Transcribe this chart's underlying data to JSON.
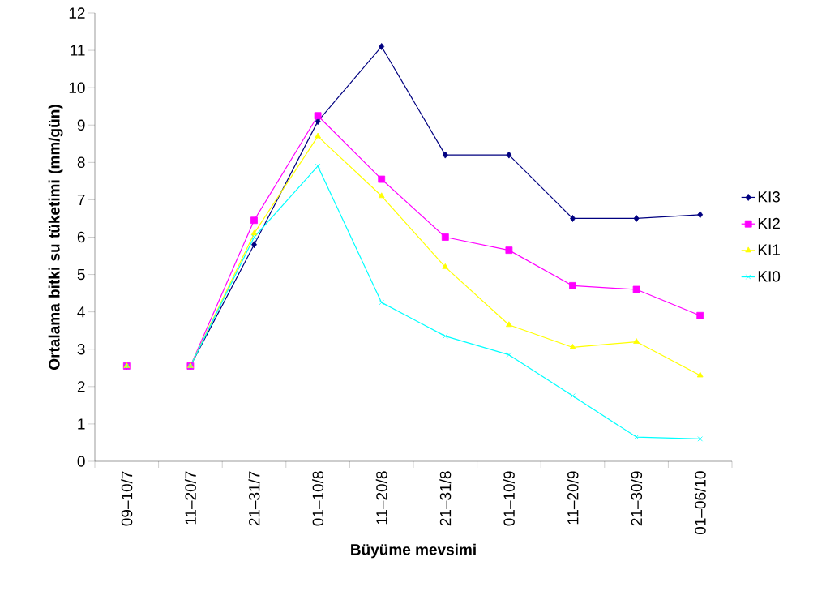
{
  "chart_data": {
    "type": "line",
    "xlabel": "Büyüme mevsimi",
    "ylabel": "Ortalama bitki su tüketimi (mm/gün)",
    "categories": [
      "09–10/7",
      "11–20/7",
      "21–31/7",
      "01–10/8",
      "11–20/8",
      "21–31/8",
      "01–10/9",
      "11–20/9",
      "21–30/9",
      "01–06/10"
    ],
    "ylim": [
      0,
      12
    ],
    "yticks": [
      0,
      1,
      2,
      3,
      4,
      5,
      6,
      7,
      8,
      9,
      10,
      11,
      12
    ],
    "grid": false,
    "legend": "right",
    "line_style": "solid",
    "series": [
      {
        "name": "KI3",
        "color": "#000080",
        "marker": "diamond",
        "values": [
          2.55,
          2.55,
          5.8,
          9.1,
          11.1,
          8.2,
          8.2,
          6.5,
          6.5,
          6.6
        ]
      },
      {
        "name": "KI2",
        "color": "#ff00ff",
        "marker": "square",
        "values": [
          2.55,
          2.55,
          6.45,
          9.25,
          7.55,
          6.0,
          5.65,
          4.7,
          4.6,
          3.9
        ]
      },
      {
        "name": "KI1",
        "color": "#ffff00",
        "marker": "triangle",
        "values": [
          2.55,
          2.55,
          6.1,
          8.7,
          7.1,
          5.2,
          3.65,
          3.05,
          3.2,
          2.3
        ]
      },
      {
        "name": "KI0",
        "color": "#00ffff",
        "marker": "cross",
        "values": [
          2.55,
          2.55,
          6.0,
          7.9,
          4.25,
          3.35,
          2.85,
          1.75,
          0.65,
          0.6
        ]
      }
    ]
  }
}
